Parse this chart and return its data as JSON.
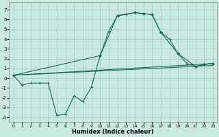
{
  "xlabel": "Humidex (Indice chaleur)",
  "background_color": "#c8e8e0",
  "grid_color": "#a0c8c0",
  "line_color": "#1a6b5a",
  "xlim": [
    -0.5,
    23.5
  ],
  "ylim": [
    -4.5,
    7.8
  ],
  "yticks": [
    -4,
    -3,
    -2,
    -1,
    0,
    1,
    2,
    3,
    4,
    5,
    6,
    7
  ],
  "xticks": [
    0,
    1,
    2,
    3,
    4,
    5,
    6,
    7,
    8,
    9,
    10,
    11,
    12,
    13,
    14,
    15,
    16,
    17,
    18,
    19,
    20,
    21,
    22,
    23
  ],
  "series_jagged": {
    "x": [
      0,
      1,
      2,
      3,
      4,
      5,
      6,
      7,
      8,
      9,
      10,
      11,
      12,
      13,
      14,
      15,
      16,
      17,
      18,
      19,
      20,
      21,
      22,
      23
    ],
    "y": [
      0.3,
      -0.7,
      -0.5,
      -0.5,
      -0.5,
      -3.8,
      -3.7,
      -1.8,
      -2.4,
      -0.9,
      2.3,
      4.8,
      6.4,
      6.5,
      6.7,
      6.6,
      6.5,
      4.7,
      4.0,
      2.5,
      1.5,
      1.2,
      1.4,
      1.5
    ]
  },
  "series_line1": {
    "x": [
      0,
      23
    ],
    "y": [
      0.3,
      1.5
    ]
  },
  "series_line2": {
    "x": [
      0,
      23
    ],
    "y": [
      0.3,
      1.3
    ]
  },
  "series_envelope": {
    "x": [
      0,
      10,
      12,
      14,
      15,
      16,
      17,
      19,
      21,
      22,
      23
    ],
    "y": [
      0.3,
      2.3,
      6.4,
      6.7,
      6.6,
      6.5,
      4.7,
      2.5,
      1.2,
      1.4,
      1.5
    ]
  }
}
